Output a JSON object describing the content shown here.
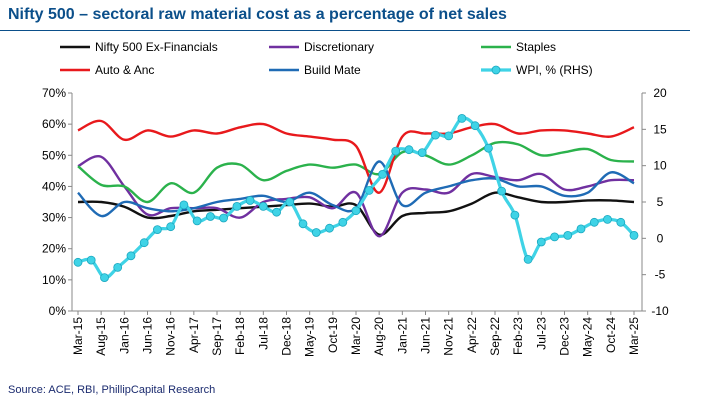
{
  "header": {
    "title": "Nifty 500 – sectoral raw material cost as a percentage of net sales"
  },
  "footer": {
    "source": "Source: ACE, RBI, PhillipCapital Research"
  },
  "colors": {
    "title": "#0b4f8a",
    "source": "#1a2a6e",
    "Nifty 500 Ex-Financials": "#111111",
    "Discretionary": "#7030a0",
    "Staples": "#2bb24c",
    "Auto & Anc": "#e8191c",
    "Build Mate": "#1f6bb5",
    "WPI, % (RHS)": "#3fd3e6"
  },
  "chart_data": {
    "type": "line",
    "legend_position": "top",
    "grid": false,
    "y_left": {
      "ticks": [
        "0%",
        "10%",
        "20%",
        "30%",
        "40%",
        "50%",
        "60%",
        "70%"
      ],
      "range": [
        0,
        70
      ]
    },
    "y_right": {
      "ticks": [
        "-10",
        "-5",
        "0",
        "5",
        "10",
        "15",
        "20"
      ],
      "range": [
        -10,
        20
      ]
    },
    "x_tick_labels": [
      "Mar-15",
      "Aug-15",
      "Jan-16",
      "Jun-16",
      "Nov-16",
      "Apr-17",
      "Sep-17",
      "Feb-18",
      "Jul-18",
      "Dec-18",
      "May-19",
      "Oct-19",
      "Mar-20",
      "Aug-20",
      "Jan-21",
      "Jun-21",
      "Nov-21",
      "Apr-22",
      "Sep-22",
      "Feb-23",
      "Jul-23",
      "Dec-23",
      "May-24",
      "Oct-24",
      "Mar-25"
    ],
    "series": [
      {
        "name": "Nifty 500 Ex-Financials",
        "axis": "left",
        "marker": false,
        "values": [
          35,
          35,
          33.5,
          30,
          30.5,
          32,
          32.5,
          33,
          33.5,
          34,
          34.5,
          33.5,
          34,
          24.5,
          30.5,
          31.5,
          32,
          34.5,
          38,
          36.5,
          35,
          35,
          35.5,
          35.5,
          35
        ]
      },
      {
        "name": "Discretionary",
        "axis": "left",
        "marker": false,
        "values": [
          46.5,
          49.5,
          40,
          31,
          33,
          33,
          33,
          30,
          35,
          36,
          36.5,
          33,
          38,
          24,
          38,
          39,
          38,
          44,
          43,
          42,
          44,
          39,
          40,
          42,
          42
        ]
      },
      {
        "name": "Staples",
        "axis": "left",
        "marker": false,
        "values": [
          46.5,
          40.5,
          40,
          35,
          41,
          38,
          46,
          47,
          42,
          45,
          47,
          46,
          47,
          44,
          51,
          50,
          47,
          50,
          54,
          53.5,
          50,
          51,
          52,
          48.5,
          48
        ]
      },
      {
        "name": "Auto & Anc",
        "axis": "left",
        "marker": false,
        "values": [
          58,
          61,
          55,
          58,
          56,
          58,
          57,
          59,
          60,
          57,
          56,
          55,
          53,
          38,
          56,
          57,
          57,
          59,
          60,
          57,
          58,
          58,
          57,
          56,
          59
        ]
      },
      {
        "name": "Build Mate",
        "axis": "left",
        "marker": false,
        "values": [
          38,
          30.5,
          35,
          33,
          32,
          33,
          35,
          36,
          37,
          35,
          38,
          34,
          33,
          48,
          34,
          38,
          40,
          42,
          42.5,
          40,
          40,
          37,
          38,
          44.5,
          41
        ]
      },
      {
        "name": "WPI, % (RHS)",
        "axis": "right",
        "marker": true,
        "values": [
          -3.3,
          -3,
          -5.4,
          -4,
          -2.4,
          -0.6,
          1.2,
          1.6,
          4.6,
          2.4,
          3,
          2.8,
          4.4,
          5.2,
          4.4,
          3.6,
          5,
          2,
          0.8,
          1.4,
          2.2,
          3.8,
          6.6,
          8.8,
          12,
          12.2,
          11.8,
          14.2,
          14.1,
          16.5,
          15.5,
          12.4,
          6.5,
          3.2,
          -2.9,
          -0.5,
          0.2,
          0.4,
          1.3,
          2.2,
          2.6,
          2.2,
          0.4
        ]
      }
    ]
  }
}
